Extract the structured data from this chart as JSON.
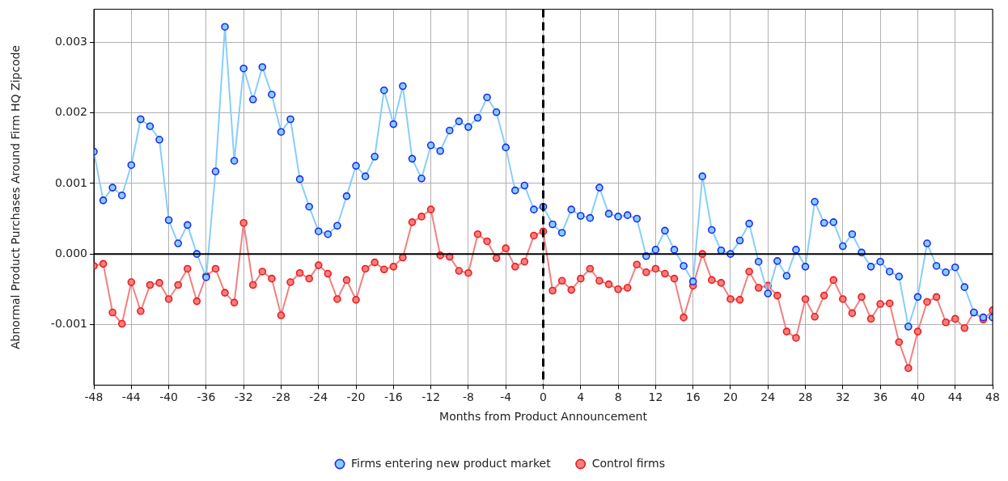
{
  "chart_data": {
    "type": "line",
    "xlabel": "Months from Product Announcement",
    "ylabel": "Abnormal Product Purchases Around Firm HQ Zipcode",
    "x": [
      -48,
      -47,
      -46,
      -45,
      -44,
      -43,
      -42,
      -41,
      -40,
      -39,
      -38,
      -37,
      -36,
      -35,
      -34,
      -33,
      -32,
      -31,
      -30,
      -29,
      -28,
      -27,
      -26,
      -25,
      -24,
      -23,
      -22,
      -21,
      -20,
      -19,
      -18,
      -17,
      -16,
      -15,
      -14,
      -13,
      -12,
      -11,
      -10,
      -9,
      -8,
      -7,
      -6,
      -5,
      -4,
      -3,
      -2,
      -1,
      0,
      1,
      2,
      3,
      4,
      5,
      6,
      7,
      8,
      9,
      10,
      11,
      12,
      13,
      14,
      15,
      16,
      17,
      18,
      19,
      20,
      21,
      22,
      23,
      24,
      25,
      26,
      27,
      28,
      29,
      30,
      31,
      32,
      33,
      34,
      35,
      36,
      37,
      38,
      39,
      40,
      41,
      42,
      43,
      44,
      45,
      46,
      47,
      48
    ],
    "series": [
      {
        "name": "Firms entering new product market",
        "color": "#87cefa",
        "values": [
          0.00145,
          0.00076,
          0.00094,
          0.00083,
          0.00126,
          0.00191,
          0.00181,
          0.00162,
          0.00048,
          0.00015,
          0.00041,
          0.0,
          -0.00033,
          0.00117,
          0.00322,
          0.00132,
          0.00263,
          0.00219,
          0.00265,
          0.00226,
          0.00173,
          0.00191,
          0.00106,
          0.00067,
          0.00032,
          0.00028,
          0.0004,
          0.00082,
          0.00125,
          0.0011,
          0.00138,
          0.00232,
          0.00184,
          0.00238,
          0.00135,
          0.00107,
          0.00154,
          0.00146,
          0.00175,
          0.00188,
          0.0018,
          0.00193,
          0.00222,
          0.00201,
          0.00151,
          0.0009,
          0.00097,
          0.00063,
          0.00067,
          0.00042,
          0.0003,
          0.00063,
          0.00054,
          0.00051,
          0.00094,
          0.00057,
          0.00053,
          0.00055,
          0.0005,
          -3e-05,
          6e-05,
          0.00033,
          6e-05,
          -0.00017,
          -0.00039,
          0.0011,
          0.00034,
          5e-05,
          0.0,
          0.00019,
          0.00043,
          -0.00011,
          -0.00056,
          -0.0001,
          -0.00031,
          6e-05,
          -0.00018,
          0.00074,
          0.00044,
          0.00045,
          0.00011,
          0.00028,
          2e-05,
          -0.00018,
          -0.00011,
          -0.00025,
          -0.00032,
          -0.00103,
          -0.00061,
          0.00015,
          -0.00017,
          -0.00026,
          -0.00019,
          -0.00047,
          -0.00083,
          -0.0009,
          -0.0009
        ]
      },
      {
        "name": "Control firms",
        "color": "#f08080",
        "values": [
          -0.00017,
          -0.00014,
          -0.00083,
          -0.00099,
          -0.0004,
          -0.00081,
          -0.00044,
          -0.00041,
          -0.00064,
          -0.00044,
          -0.00021,
          -0.00067,
          -0.00031,
          -0.00021,
          -0.00055,
          -0.00069,
          0.00044,
          -0.00044,
          -0.00025,
          -0.00035,
          -0.00087,
          -0.0004,
          -0.00027,
          -0.00035,
          -0.00016,
          -0.00028,
          -0.00064,
          -0.00037,
          -0.00065,
          -0.00021,
          -0.00012,
          -0.00022,
          -0.00018,
          -5e-05,
          0.00045,
          0.00053,
          0.00063,
          -2e-05,
          -4e-05,
          -0.00024,
          -0.00027,
          0.00028,
          0.00018,
          -6e-05,
          8e-05,
          -0.00018,
          -0.00011,
          0.00026,
          0.00032,
          -0.00052,
          -0.00038,
          -0.00051,
          -0.00035,
          -0.00021,
          -0.00038,
          -0.00043,
          -0.0005,
          -0.00048,
          -0.00015,
          -0.00026,
          -0.00021,
          -0.00028,
          -0.00035,
          -0.0009,
          -0.00045,
          0.0,
          -0.00037,
          -0.00041,
          -0.00064,
          -0.00065,
          -0.00025,
          -0.00048,
          -0.00045,
          -0.00059,
          -0.0011,
          -0.00119,
          -0.00064,
          -0.00089,
          -0.00059,
          -0.00037,
          -0.00064,
          -0.00084,
          -0.00061,
          -0.00092,
          -0.00071,
          -0.0007,
          -0.00125,
          -0.00162,
          -0.0011,
          -0.00068,
          -0.00061,
          -0.00097,
          -0.00092,
          -0.00105,
          -0.00083,
          -0.00093,
          -0.0008
        ]
      }
    ],
    "xlim": [
      -48,
      48
    ],
    "xticks": [
      -48,
      -44,
      -40,
      -36,
      -32,
      -28,
      -24,
      -20,
      -16,
      -12,
      -8,
      -4,
      0,
      4,
      8,
      12,
      16,
      20,
      24,
      28,
      32,
      36,
      40,
      44,
      48
    ],
    "ylim": [
      -0.00186,
      0.00347
    ],
    "yticks": [
      {
        "value": -0.001,
        "label": "-0.001"
      },
      {
        "value": 0,
        "label": "0.000"
      },
      0.001,
      0.002,
      0.003
    ],
    "ref_lines": [
      {
        "axis": "y",
        "value": 0,
        "color": "#000000",
        "line_style": "solid"
      },
      {
        "axis": "x",
        "value": 0,
        "color": "#000000",
        "line_style": "dashed"
      }
    ],
    "grid": true,
    "legend": "bottom",
    "marker": "circle",
    "line_style": "solid"
  }
}
